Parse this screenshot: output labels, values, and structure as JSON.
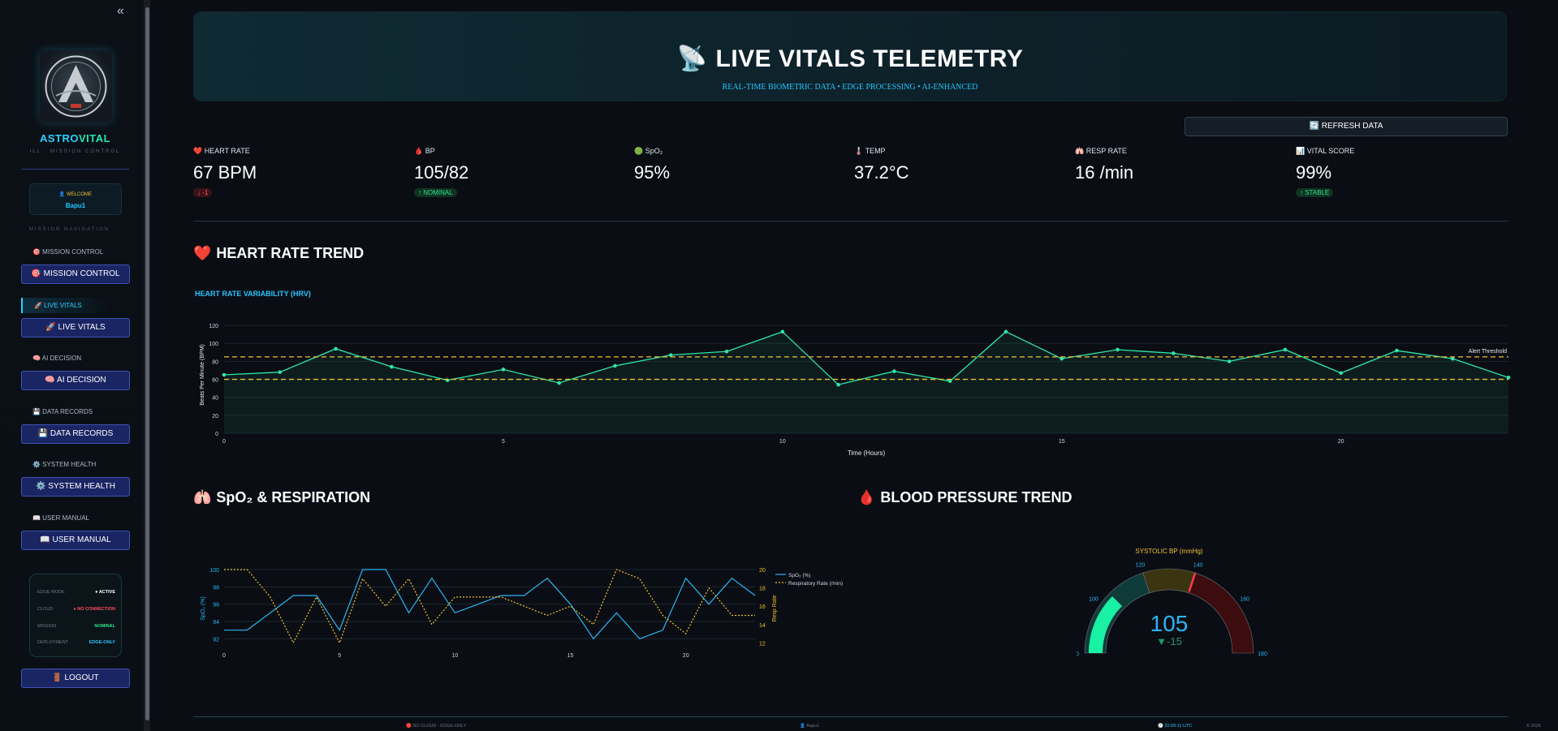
{
  "sidebar": {
    "collapse_glyph": "«",
    "brand_part1": "ASTRO",
    "brand_part2": "VITAL",
    "brand_sub": "ILL · MISSION CONTROL",
    "welcome_label": "👤 WELCOME",
    "welcome_user": "Bapu1",
    "nav_heading": "MISSION NAVIGATION",
    "items": [
      {
        "label": "🎯 MISSION CONTROL",
        "button": "🎯 MISSION CONTROL"
      },
      {
        "label": "🚀 LIVE VITALS",
        "button": "🚀 LIVE VITALS"
      },
      {
        "label": "🧠 AI DECISION",
        "button": "🧠 AI DECISION"
      },
      {
        "label": "💾 DATA RECORDS",
        "button": "💾 DATA RECORDS"
      },
      {
        "label": "⚙️ SYSTEM HEALTH",
        "button": "⚙️ SYSTEM HEALTH"
      },
      {
        "label": "📖 USER MANUAL",
        "button": "📖 USER MANUAL"
      }
    ],
    "status": [
      {
        "key": "EDGE MODE",
        "value": "● ACTIVE",
        "color": "#ffffff"
      },
      {
        "key": "CLOUD",
        "value": "● NO CONNECTION",
        "color": "#ff4d5e"
      },
      {
        "key": "MISSION",
        "value": "NOMINAL",
        "color": "#2ee08a"
      },
      {
        "key": "DEPLOYMENT",
        "value": "EDGE-ONLY",
        "color": "#27c4ff"
      }
    ],
    "logout": "🚪 LOGOUT"
  },
  "hero": {
    "icon": "📡",
    "title": "LIVE VITALS TELEMETRY",
    "subtitle": "REAL-TIME BIOMETRIC DATA • EDGE PROCESSING • AI-ENHANCED"
  },
  "refresh_label": "🔄 REFRESH DATA",
  "metrics": [
    {
      "icon": "❤️",
      "label": "HEART RATE",
      "value": "67 BPM",
      "badge": "↓ -1",
      "badge_type": "red"
    },
    {
      "icon": "🩸",
      "label": "BP",
      "value": "105/82",
      "badge": "↑ NOMINAL",
      "badge_type": "green"
    },
    {
      "icon": "🟢",
      "label": "SpO₂",
      "value": "95%",
      "badge": "",
      "badge_type": ""
    },
    {
      "icon": "🌡️",
      "label": "TEMP",
      "value": "37.2°C",
      "badge": "",
      "badge_type": ""
    },
    {
      "icon": "🫁",
      "label": "RESP RATE",
      "value": "16 /min",
      "badge": "",
      "badge_type": ""
    },
    {
      "icon": "📊",
      "label": "VITAL SCORE",
      "value": "99%",
      "badge": "↑ STABLE",
      "badge_type": "green"
    }
  ],
  "sections": {
    "heart_rate": {
      "icon": "❤️",
      "title": "HEART RATE TREND",
      "subtitle": "HEART RATE VARIABILITY (HRV)"
    },
    "spo2": {
      "icon": "🫁",
      "title": "SpO₂ & RESPIRATION"
    },
    "bp": {
      "icon": "🩸",
      "title": "BLOOD PRESSURE TREND"
    }
  },
  "chart_data": [
    {
      "type": "area",
      "title": "",
      "xlabel": "Time (Hours)",
      "ylabel": "Beats Per Minute (BPM)",
      "xlim": [
        0,
        23
      ],
      "ylim": [
        0,
        130
      ],
      "xticks": [
        0,
        5,
        10,
        15,
        20
      ],
      "yticks": [
        0,
        20,
        40,
        60,
        80,
        100,
        120
      ],
      "x": [
        0,
        1,
        2,
        3,
        4,
        5,
        6,
        7,
        8,
        9,
        10,
        11,
        12,
        13,
        14,
        15,
        16,
        17,
        18,
        19,
        20,
        21,
        22,
        23
      ],
      "values": [
        65,
        68,
        94,
        74,
        59,
        71,
        56,
        75,
        87,
        91,
        113,
        54,
        69,
        58,
        113,
        83,
        93,
        89,
        80,
        93,
        67,
        92,
        83,
        62
      ],
      "thresholds": [
        85,
        60
      ],
      "threshold_label": "Alert Threshold",
      "color": "#2ee6a6",
      "threshold_color": "#f1c232"
    },
    {
      "type": "line",
      "title": "",
      "xlabel": "",
      "ylabel": "SpO₂ (%)",
      "y2label": "Resp Rate",
      "xlim": [
        0,
        23
      ],
      "ylim": [
        91,
        100
      ],
      "y2lim": [
        11.5,
        20
      ],
      "xticks": [
        0,
        5,
        10,
        15,
        20
      ],
      "yticks": [
        92,
        94,
        96,
        98,
        100
      ],
      "y2ticks": [
        12,
        14,
        16,
        18,
        20
      ],
      "x": [
        0,
        1,
        2,
        3,
        4,
        5,
        6,
        7,
        8,
        9,
        10,
        11,
        12,
        13,
        14,
        15,
        16,
        17,
        18,
        19,
        20,
        21,
        22,
        23
      ],
      "series": [
        {
          "name": "SpO₂ (%)",
          "axis": "left",
          "color": "#29b6f6",
          "dash": false,
          "values": [
            93,
            93,
            95,
            97,
            97,
            93,
            100,
            100,
            95,
            99,
            95,
            96,
            97,
            97,
            99,
            96,
            92,
            95,
            92,
            93,
            99,
            96,
            99,
            97
          ]
        },
        {
          "name": "Respiratory Rate (/min)",
          "axis": "right",
          "color": "#f1c232",
          "dash": true,
          "values": [
            20,
            20,
            17,
            12,
            17,
            12,
            19,
            16,
            19,
            14,
            17,
            17,
            17,
            16,
            15,
            16,
            14,
            20,
            19,
            15,
            13,
            18,
            15,
            15
          ]
        }
      ],
      "legend": "top-right"
    },
    {
      "type": "gauge",
      "title": "SYSTOLIC BP (mmHg)",
      "value": 105,
      "delta": "▼-15",
      "range": [
        80,
        180
      ],
      "ticks": [
        80,
        100,
        120,
        140,
        160,
        180
      ],
      "bands": [
        {
          "from": 80,
          "to": 120,
          "color": "#0f3a3a"
        },
        {
          "from": 120,
          "to": 140,
          "color": "#3a3510"
        },
        {
          "from": 140,
          "to": 180,
          "color": "#3d0c0e"
        }
      ],
      "threshold": 140,
      "bar_color": "#19f2a4",
      "value_color": "#29b6f6",
      "delta_color": "#1f9b6a"
    }
  ],
  "footer": {
    "cloud": "🔴 NO CLOUD · EDGE-ONLY",
    "user": "👤 Bapu1",
    "time": "🕐 20:09:11 UTC",
    "year": "© 2026"
  }
}
